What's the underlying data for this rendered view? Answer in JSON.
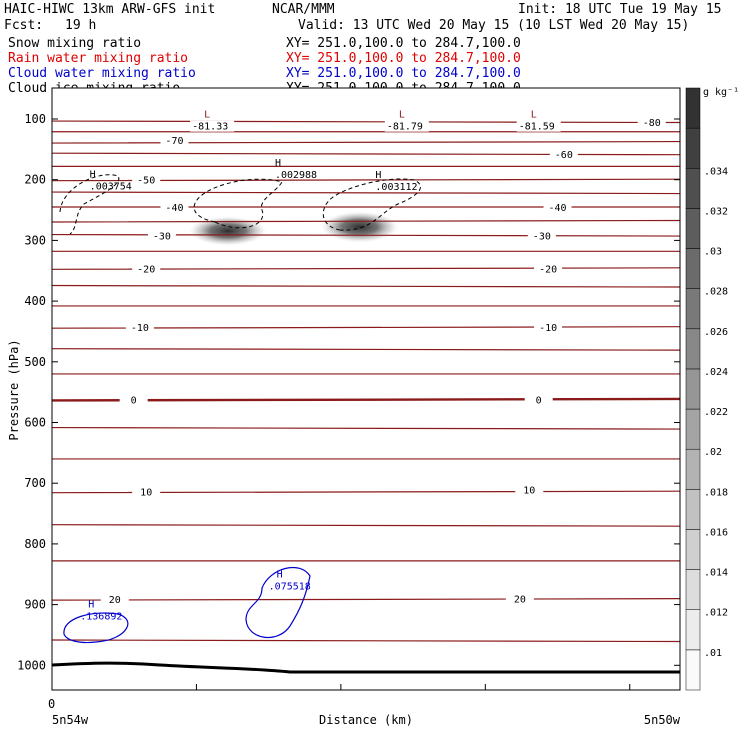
{
  "header": {
    "model": "HAIC-HIWC 13km ARW-GFS init",
    "center": "NCAR/MMM",
    "init": "Init: 18 UTC Tue 19 May 15",
    "fcst_label": "Fcst:",
    "fcst_value": "19 h",
    "valid": "Valid: 13 UTC Wed 20 May 15 (10 LST Wed 20 May 15)"
  },
  "fields": [
    {
      "name": "Snow mixing ratio",
      "xy": "XY= 251.0,100.0 to 284.7,100.0",
      "color": "#000000"
    },
    {
      "name": "Rain water mixing ratio",
      "xy": "XY= 251.0,100.0 to 284.7,100.0",
      "color": "#e00000"
    },
    {
      "name": "Cloud water mixing ratio",
      "xy": "XY= 251.0,100.0 to 284.7,100.0",
      "color": "#0000cc"
    },
    {
      "name": "Cloud ice mixing ratio",
      "xy": "XY= 251.0,100.0 to 284.7,100.0",
      "color": "#000000"
    }
  ],
  "colorbar": {
    "unit": "g kg⁻¹",
    "labels": [
      ".01",
      ".012",
      ".014",
      ".016",
      ".018",
      ".02",
      ".022",
      ".024",
      ".026",
      ".028",
      ".03",
      ".032",
      ".034"
    ]
  },
  "chart_data": {
    "type": "contour cross-section",
    "xlabel": "Distance (km)",
    "ylabel": "Pressure (hPa)",
    "x_origin_label": "0",
    "x_start_label": "5n54w",
    "x_end_label": "5n50w",
    "yticks": [
      100,
      200,
      300,
      400,
      500,
      600,
      700,
      800,
      900,
      1000
    ],
    "ylim": [
      1050,
      50
    ],
    "temperature_contours": {
      "color": "#8b1a1a",
      "interval": 5,
      "labels": [
        {
          "text": "-80",
          "p": 105,
          "xf": 0.955
        },
        {
          "text": "-70",
          "p": 135,
          "xf": 0.195
        },
        {
          "text": "-60",
          "p": 158,
          "xf": 0.815
        },
        {
          "text": "-50",
          "p": 200,
          "xf": 0.15
        },
        {
          "text": "-40",
          "p": 245,
          "xf": 0.195
        },
        {
          "text": "-40",
          "p": 245,
          "xf": 0.805
        },
        {
          "text": "-30",
          "p": 292,
          "xf": 0.175
        },
        {
          "text": "-30",
          "p": 292,
          "xf": 0.78
        },
        {
          "text": "-20",
          "p": 346,
          "xf": 0.15
        },
        {
          "text": "-20",
          "p": 346,
          "xf": 0.79
        },
        {
          "text": "-10",
          "p": 443,
          "xf": 0.14
        },
        {
          "text": "-10",
          "p": 443,
          "xf": 0.79
        },
        {
          "text": "0",
          "p": 562,
          "xf": 0.13
        },
        {
          "text": "0",
          "p": 562,
          "xf": 0.775
        },
        {
          "text": "10",
          "p": 714,
          "xf": 0.15
        },
        {
          "text": "10",
          "p": 710,
          "xf": 0.76
        },
        {
          "text": "20",
          "p": 891,
          "xf": 0.1
        },
        {
          "text": "20",
          "p": 890,
          "xf": 0.745
        }
      ],
      "lows": [
        {
          "label": "L",
          "value": "-81.33",
          "p": 111,
          "xf": 0.255
        },
        {
          "label": "L",
          "value": "-81.79",
          "p": 111,
          "xf": 0.565
        },
        {
          "label": "L",
          "value": "-81.59",
          "p": 111,
          "xf": 0.775
        }
      ]
    },
    "snow_maxima": [
      {
        "label": "H",
        "value": ".003754",
        "p": 213,
        "xf": 0.06
      },
      {
        "label": "H",
        "value": ".002988",
        "p": 194,
        "xf": 0.355
      },
      {
        "label": "H",
        "value": ".003112",
        "p": 214,
        "xf": 0.515
      }
    ],
    "cloud_water_maxima": [
      {
        "label": "H",
        "value": ".136892",
        "p": 921,
        "xf": 0.045
      },
      {
        "label": "H",
        "value": ".075518",
        "p": 872,
        "xf": 0.345
      }
    ],
    "shaded_max_g_per_kg": 0.034,
    "shaded_min_g_per_kg": 0.01
  }
}
